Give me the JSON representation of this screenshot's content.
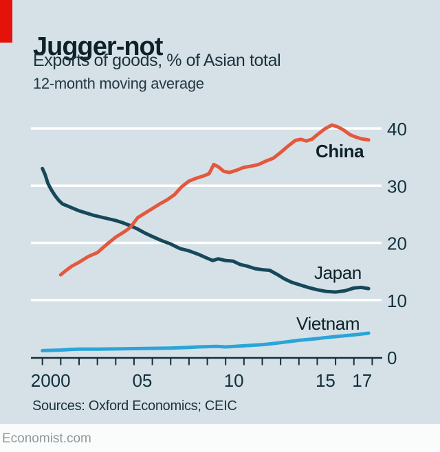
{
  "header": {
    "title": "Jugger-not",
    "subtitle": "Exports of goods, % of Asian total",
    "note": "12-month moving average"
  },
  "footer": {
    "sources": "Sources: Oxford Economics; CEIC",
    "site": "Economist.com"
  },
  "colors": {
    "background": "#d5e1e7",
    "accent": "#e3120b",
    "ink": "#0e2129",
    "grid": "#ffffff",
    "axis": "#12303c",
    "footer_bg": "#fafbfb",
    "footer_text": "#8f989c"
  },
  "chart_data": {
    "type": "line",
    "title": "Jugger-not",
    "subtitle": "Exports of goods, % of Asian total",
    "note": "12-month moving average",
    "unit": "% of Asian total",
    "y_range": [
      0,
      42
    ],
    "yticks": [
      0,
      10,
      20,
      30,
      40
    ],
    "xticks": [
      2000,
      2001,
      2002,
      2003,
      2004,
      2005,
      2006,
      2007,
      2008,
      2009,
      2010,
      2011,
      2012,
      2013,
      2014,
      2015,
      2016,
      2017,
      2018
    ],
    "xtick_labels": {
      "2000": "2000",
      "2005": "05",
      "2010": "10",
      "2015": "15",
      "2017": "17"
    },
    "grid": "horizontal-white",
    "legend": "inline-labels",
    "series": [
      {
        "name": "Japan",
        "color": "#16485a",
        "points": [
          [
            2000.0,
            33.0
          ],
          [
            2000.15,
            31.9
          ],
          [
            2000.3,
            30.4
          ],
          [
            2000.5,
            29.2
          ],
          [
            2000.7,
            28.2
          ],
          [
            2000.9,
            27.4
          ],
          [
            2001.1,
            26.8
          ],
          [
            2001.4,
            26.4
          ],
          [
            2001.7,
            26.0
          ],
          [
            2002.0,
            25.6
          ],
          [
            2002.4,
            25.2
          ],
          [
            2002.8,
            24.8
          ],
          [
            2003.2,
            24.5
          ],
          [
            2003.6,
            24.2
          ],
          [
            2004.0,
            23.9
          ],
          [
            2004.4,
            23.5
          ],
          [
            2004.8,
            23.0
          ],
          [
            2005.2,
            22.4
          ],
          [
            2005.6,
            21.7
          ],
          [
            2006.0,
            21.1
          ],
          [
            2006.5,
            20.4
          ],
          [
            2007.0,
            19.8
          ],
          [
            2007.5,
            19.0
          ],
          [
            2008.0,
            18.6
          ],
          [
            2008.5,
            18.0
          ],
          [
            2009.0,
            17.3
          ],
          [
            2009.3,
            16.9
          ],
          [
            2009.6,
            17.2
          ],
          [
            2010.0,
            16.9
          ],
          [
            2010.4,
            16.8
          ],
          [
            2010.8,
            16.2
          ],
          [
            2011.2,
            15.9
          ],
          [
            2011.6,
            15.5
          ],
          [
            2012.0,
            15.3
          ],
          [
            2012.4,
            15.2
          ],
          [
            2012.8,
            14.5
          ],
          [
            2013.2,
            13.7
          ],
          [
            2013.6,
            13.1
          ],
          [
            2014.0,
            12.7
          ],
          [
            2014.5,
            12.2
          ],
          [
            2015.0,
            11.8
          ],
          [
            2015.5,
            11.5
          ],
          [
            2016.0,
            11.4
          ],
          [
            2016.5,
            11.6
          ],
          [
            2017.0,
            12.1
          ],
          [
            2017.4,
            12.2
          ],
          [
            2017.8,
            12.0
          ]
        ]
      },
      {
        "name": "China",
        "color": "#e4583d",
        "bold_label": true,
        "points": [
          [
            2001.0,
            14.4
          ],
          [
            2001.3,
            15.2
          ],
          [
            2001.6,
            15.9
          ],
          [
            2002.0,
            16.6
          ],
          [
            2002.5,
            17.6
          ],
          [
            2003.0,
            18.3
          ],
          [
            2003.5,
            19.7
          ],
          [
            2004.0,
            21.0
          ],
          [
            2004.5,
            22.0
          ],
          [
            2004.8,
            22.7
          ],
          [
            2005.2,
            24.4
          ],
          [
            2005.6,
            25.2
          ],
          [
            2006.0,
            26.0
          ],
          [
            2006.4,
            26.8
          ],
          [
            2006.8,
            27.5
          ],
          [
            2007.2,
            28.4
          ],
          [
            2007.6,
            29.8
          ],
          [
            2008.0,
            30.8
          ],
          [
            2008.4,
            31.3
          ],
          [
            2008.8,
            31.7
          ],
          [
            2009.1,
            32.1
          ],
          [
            2009.35,
            33.7
          ],
          [
            2009.6,
            33.3
          ],
          [
            2009.9,
            32.5
          ],
          [
            2010.2,
            32.3
          ],
          [
            2010.6,
            32.7
          ],
          [
            2011.0,
            33.2
          ],
          [
            2011.4,
            33.4
          ],
          [
            2011.8,
            33.7
          ],
          [
            2012.2,
            34.3
          ],
          [
            2012.6,
            34.8
          ],
          [
            2013.0,
            35.8
          ],
          [
            2013.4,
            36.9
          ],
          [
            2013.8,
            37.9
          ],
          [
            2014.1,
            38.1
          ],
          [
            2014.4,
            37.8
          ],
          [
            2014.7,
            38.1
          ],
          [
            2015.0,
            38.9
          ],
          [
            2015.4,
            39.9
          ],
          [
            2015.8,
            40.6
          ],
          [
            2016.1,
            40.3
          ],
          [
            2016.4,
            39.8
          ],
          [
            2016.8,
            38.9
          ],
          [
            2017.1,
            38.5
          ],
          [
            2017.4,
            38.2
          ],
          [
            2017.8,
            38.0
          ]
        ]
      },
      {
        "name": "Vietnam",
        "color": "#2ba4d9",
        "points": [
          [
            2000.0,
            1.15
          ],
          [
            2000.5,
            1.2
          ],
          [
            2001.0,
            1.25
          ],
          [
            2001.5,
            1.35
          ],
          [
            2002.0,
            1.4
          ],
          [
            2003.0,
            1.4
          ],
          [
            2004.0,
            1.45
          ],
          [
            2005.0,
            1.5
          ],
          [
            2006.0,
            1.55
          ],
          [
            2007.0,
            1.6
          ],
          [
            2008.0,
            1.7
          ],
          [
            2008.5,
            1.8
          ],
          [
            2009.0,
            1.85
          ],
          [
            2009.5,
            1.9
          ],
          [
            2010.0,
            1.8
          ],
          [
            2010.5,
            1.9
          ],
          [
            2011.0,
            2.0
          ],
          [
            2011.5,
            2.1
          ],
          [
            2012.0,
            2.2
          ],
          [
            2012.5,
            2.35
          ],
          [
            2013.0,
            2.55
          ],
          [
            2013.5,
            2.75
          ],
          [
            2014.0,
            2.95
          ],
          [
            2014.5,
            3.1
          ],
          [
            2015.0,
            3.25
          ],
          [
            2015.5,
            3.45
          ],
          [
            2016.0,
            3.6
          ],
          [
            2016.5,
            3.75
          ],
          [
            2017.0,
            3.9
          ],
          [
            2017.4,
            4.05
          ],
          [
            2017.8,
            4.2
          ]
        ]
      }
    ]
  }
}
